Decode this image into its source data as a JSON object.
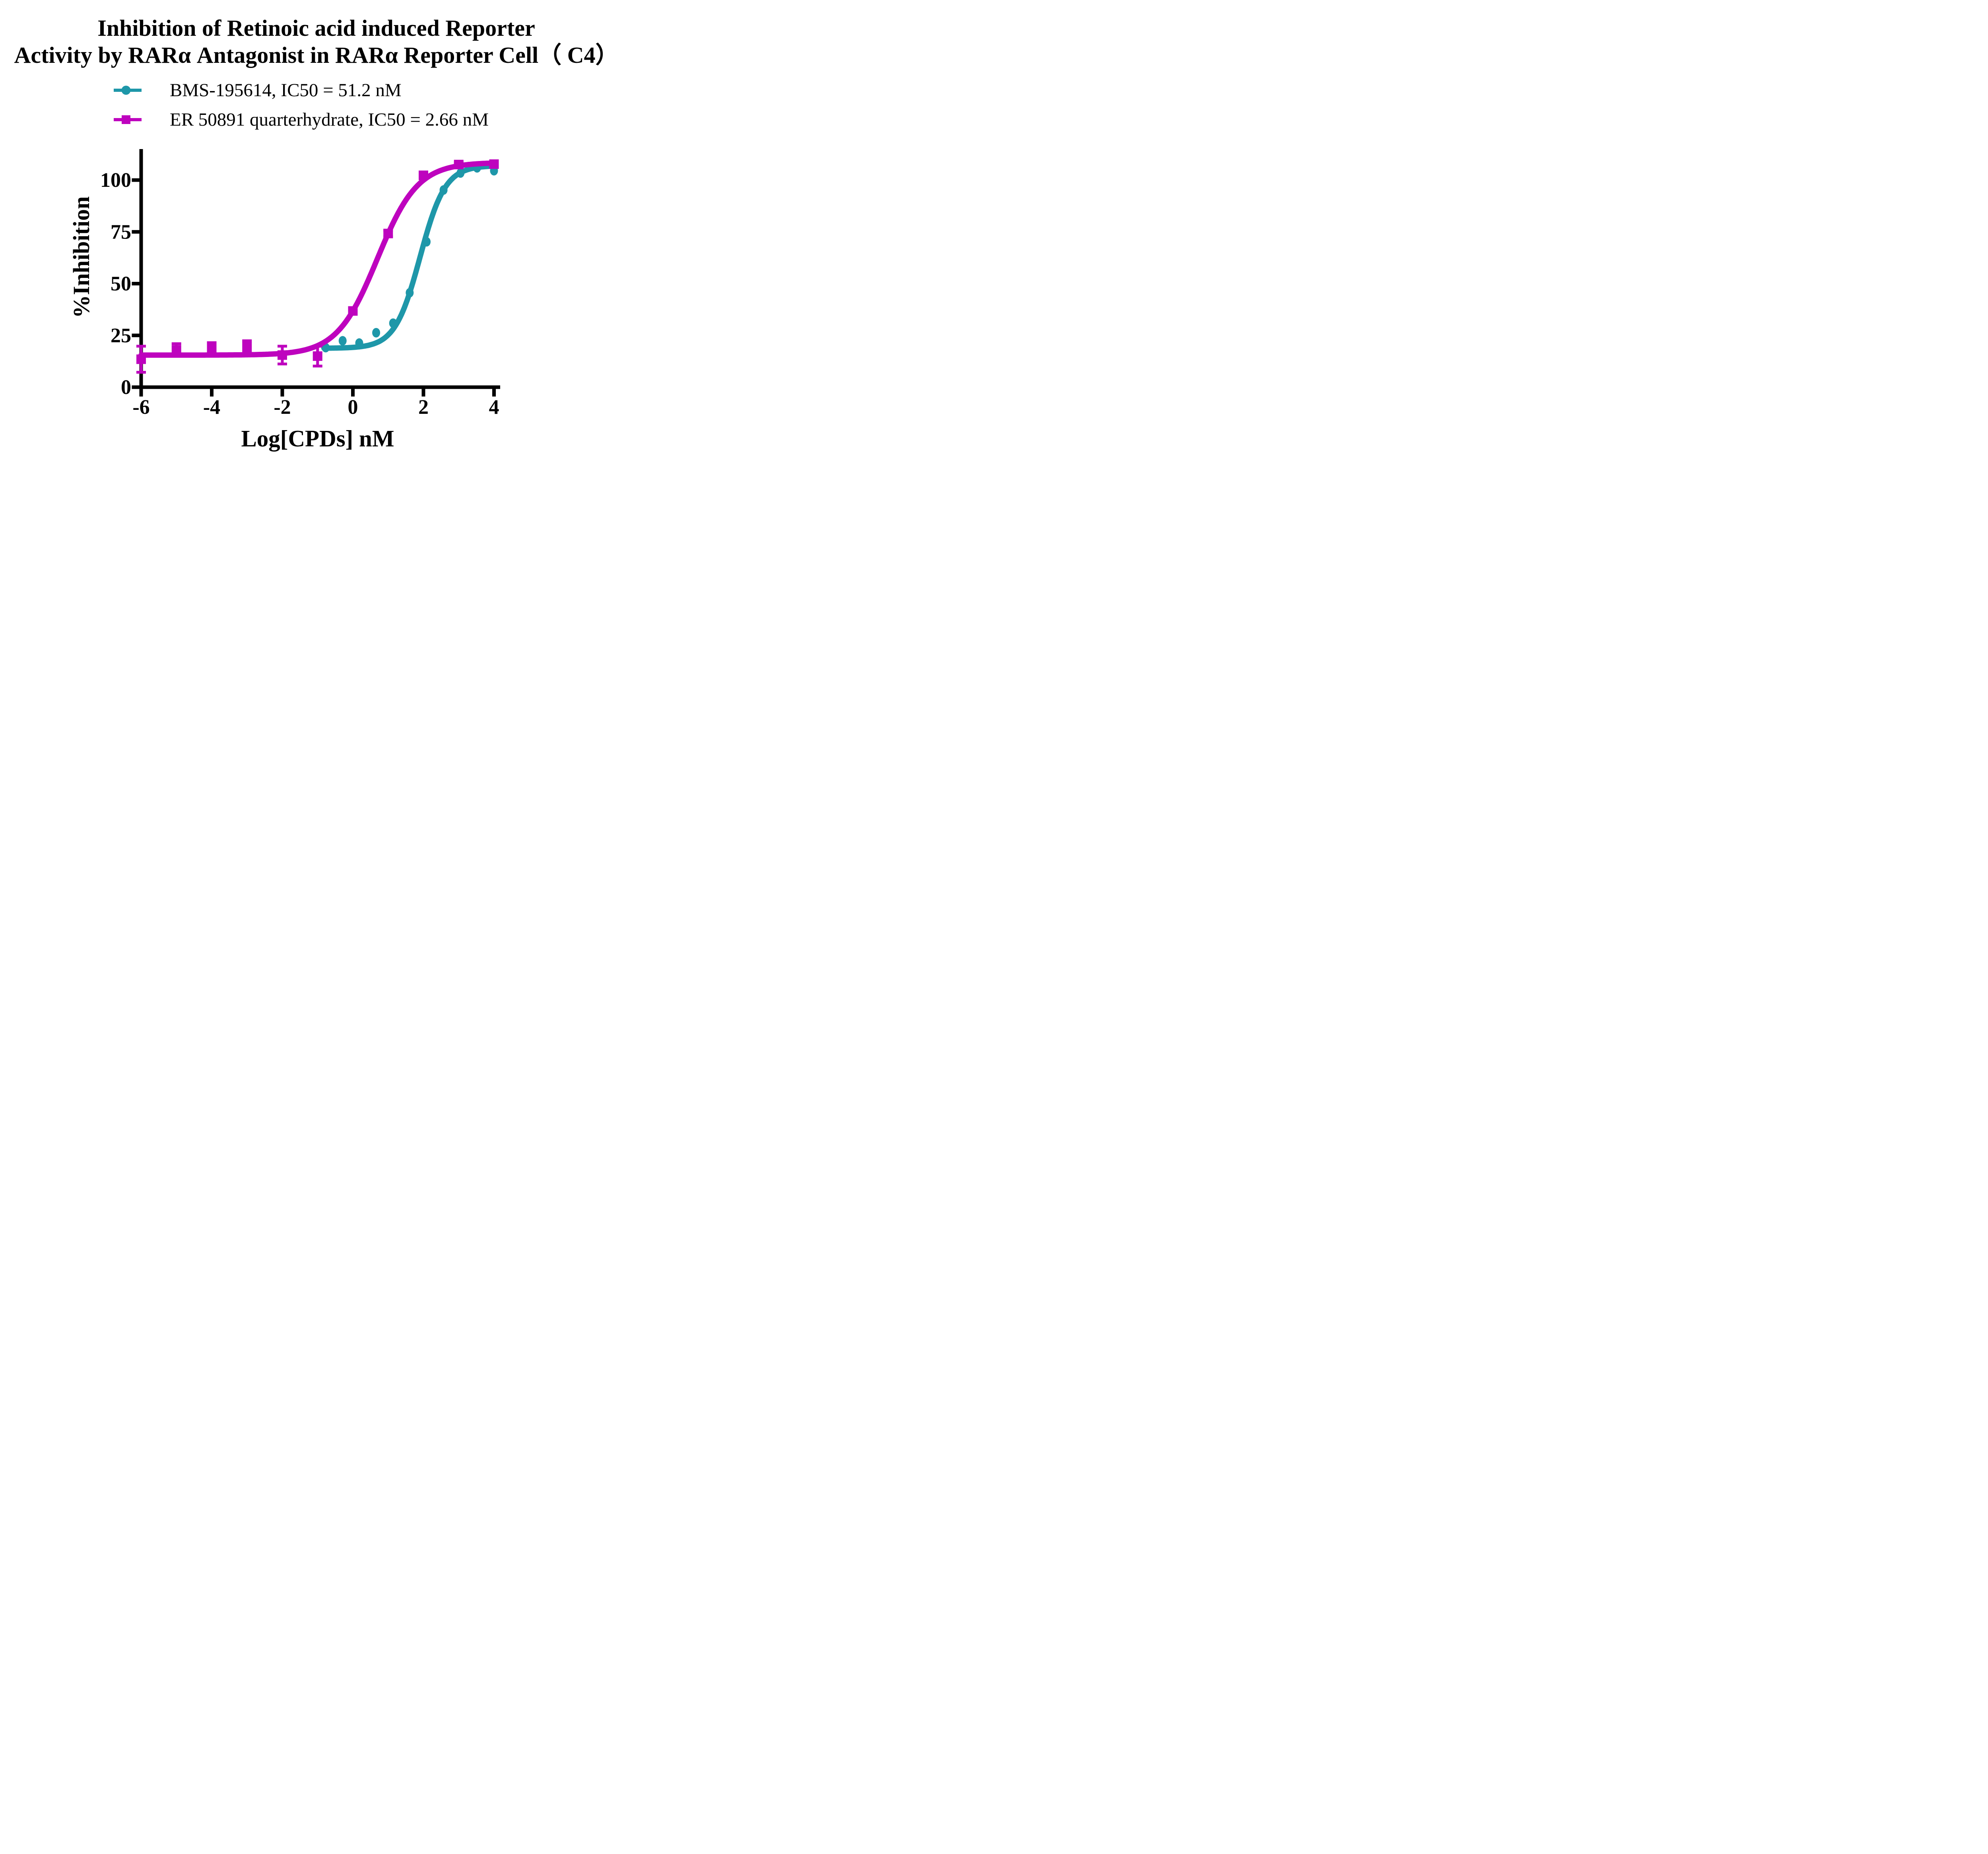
{
  "title": {
    "line1": "Inhibition of Retinoic acid induced Reporter",
    "line2": "Activity by RARα Antagonist in RARα Reporter Cell（ C4）"
  },
  "legend": {
    "items": [
      {
        "label": "BMS-195614, IC50 = 51.2 nM",
        "marker": "circle-icon",
        "color": "#1E97A9"
      },
      {
        "label": "ER 50891 quarterhydrate, IC50 = 2.66 nM",
        "marker": "square-icon",
        "color": "#BE03BE"
      }
    ]
  },
  "chart_data": {
    "type": "scatter",
    "subtype": "dose-response-sigmoid-fit",
    "xlabel": "Log[CPDs] nM",
    "ylabel": "%Inhibition",
    "x_ticks": [
      -6,
      -4,
      -2,
      0,
      2,
      4
    ],
    "y_ticks": [
      0,
      25,
      50,
      75,
      100
    ],
    "xlim": [
      -6,
      4.1
    ],
    "ylim": [
      0,
      115
    ],
    "grid": false,
    "legend_position": "top-left",
    "background": "#ffffff",
    "axis_color": "#000000",
    "series": [
      {
        "name": "BMS-195614",
        "ic50_label_nM": 51.2,
        "color": "#1E97A9",
        "marker": "circle",
        "x": [
          -0.77,
          -0.29,
          0.18,
          0.66,
          1.14,
          1.61,
          2.09,
          2.57,
          3.05,
          3.52,
          4.0
        ],
        "y": [
          19.1,
          22.4,
          21.3,
          26.3,
          30.9,
          45.6,
          70.2,
          95.2,
          103.4,
          105.9,
          104.5
        ],
        "err": [
          0,
          0,
          0,
          0,
          0,
          0,
          0,
          0,
          0,
          0,
          0
        ],
        "fit": {
          "bottom": 18.8,
          "top": 107.0,
          "hill": 1.22,
          "log_ic50": 1.905,
          "draw_from": -0.82,
          "draw_to": 4.02
        }
      },
      {
        "name": "ER 50891 quarterhydrate",
        "ic50_label_nM": 2.66,
        "color": "#BE03BE",
        "marker": "square",
        "x": [
          -6,
          -5,
          -4,
          -3,
          -2,
          -1,
          0,
          1,
          2,
          3,
          4
        ],
        "y": [
          13.5,
          18.0,
          19.0,
          19.6,
          15.5,
          15.0,
          36.8,
          74.2,
          102.3,
          107.5,
          107.7
        ],
        "err": [
          6.3,
          3.0,
          2.5,
          2.8,
          4.3,
          4.8,
          1.5,
          1.5,
          1.2,
          1.0,
          1.2
        ],
        "fit": {
          "bottom": 15.5,
          "top": 108.5,
          "hill": 0.76,
          "log_ic50": 0.6935,
          "draw_from": -6,
          "draw_to": 4.02
        }
      }
    ]
  }
}
